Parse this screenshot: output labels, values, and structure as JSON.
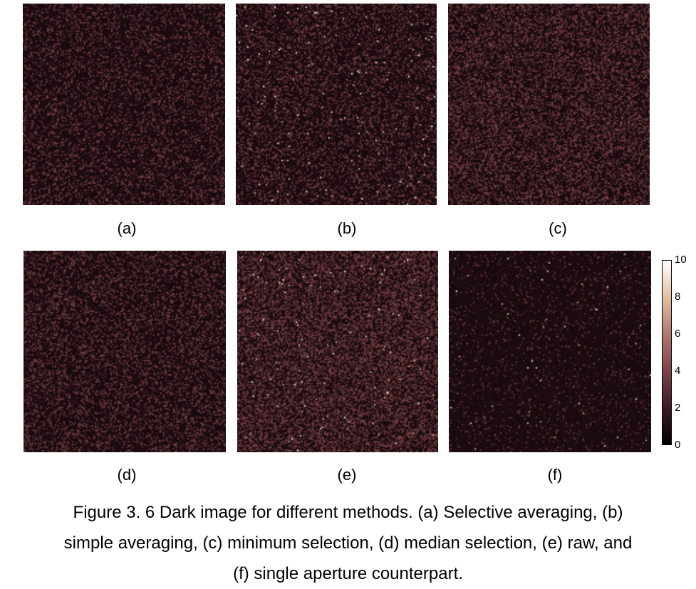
{
  "figure": {
    "panels": [
      {
        "id": "a",
        "label": "(a)",
        "brightness": 0.45,
        "hot_pixel_density": 0.0
      },
      {
        "id": "b",
        "label": "(b)",
        "brightness": 0.5,
        "hot_pixel_density": 0.006
      },
      {
        "id": "c",
        "label": "(c)",
        "brightness": 0.7,
        "hot_pixel_density": 0.0
      },
      {
        "id": "d",
        "label": "(d)",
        "brightness": 0.5,
        "hot_pixel_density": 0.0
      },
      {
        "id": "e",
        "label": "(e)",
        "brightness": 0.85,
        "hot_pixel_density": 0.005
      },
      {
        "id": "f",
        "label": "(f)",
        "brightness": 0.12,
        "hot_pixel_density": 0.002
      }
    ],
    "colorbar": {
      "ticks": [
        "10",
        "8",
        "6",
        "4",
        "2",
        "0"
      ],
      "min": 0,
      "max": 10,
      "colors": [
        "#000000",
        "#3a1a22",
        "#7a4448",
        "#b07a70",
        "#e0c0a0",
        "#ffffff"
      ]
    },
    "caption": {
      "line1": "Figure 3. 6 Dark image for different methods. (a) Selective averaging, (b)",
      "line2": "simple averaging, (c) minimum selection, (d) median selection, (e) raw, and",
      "line3": "(f) single aperture counterpart."
    }
  }
}
